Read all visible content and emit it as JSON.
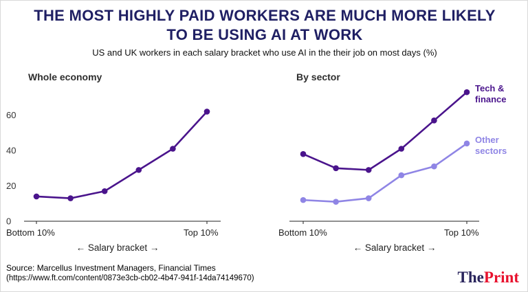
{
  "header": {
    "title_line1": "THE MOST HIGHLY PAID WORKERS ARE MUCH MORE LIKELY",
    "title_line2": "TO BE USING AI AT WORK",
    "subtitle": "US and UK workers in each salary bracket who use AI in the their job on most days (%)"
  },
  "footer": {
    "source_line1": "Source:  Marcellus Investment Managers, Financial Times",
    "source_line2": "(https://www.ft.com/content/0873e3cb-cb02-4b47-941f-14da74149670)",
    "logo_the": "The",
    "logo_print": "Print"
  },
  "colors": {
    "title_navy": "#1f1f63",
    "logo_navy": "#29245c",
    "logo_red": "#e8112d",
    "dark_purple": "#4a148c",
    "light_purple": "#8f85e5",
    "axis": "#222222"
  },
  "chart_data": [
    {
      "type": "line",
      "title": "Whole economy",
      "x_tick_labels": [
        "Bottom 10%",
        "Top 10%"
      ],
      "x_caption": "← Salary bracket →",
      "y_ticks": [
        0,
        20,
        40,
        60
      ],
      "ylim": [
        0,
        75
      ],
      "legend_position": "none",
      "grid": false,
      "series": [
        {
          "name": "Whole economy",
          "color": "#4a148c",
          "values": [
            14,
            13,
            17,
            29,
            41,
            62
          ]
        }
      ]
    },
    {
      "type": "line",
      "title": "By sector",
      "x_tick_labels": [
        "Bottom 10%",
        "Top 10%"
      ],
      "x_caption": "← Salary bracket →",
      "y_ticks": [],
      "ylim": [
        0,
        75
      ],
      "legend_position": "right-inline",
      "grid": false,
      "series": [
        {
          "name": "Tech & finance",
          "label": "Tech &\nfinance",
          "color": "#4a148c",
          "values": [
            38,
            30,
            29,
            41,
            57,
            73
          ]
        },
        {
          "name": "Other sectors",
          "label": "Other\nsectors",
          "color": "#8f85e5",
          "values": [
            12,
            11,
            13,
            26,
            31,
            44
          ]
        }
      ]
    }
  ]
}
